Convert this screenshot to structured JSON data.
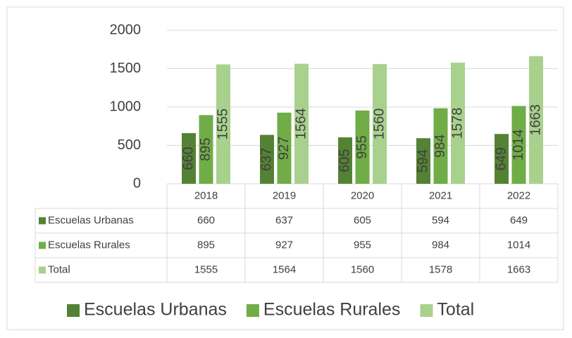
{
  "chart_data": {
    "type": "bar",
    "categories": [
      "2018",
      "2019",
      "2020",
      "2021",
      "2022"
    ],
    "series": [
      {
        "name": "Escuelas Urbanas",
        "color": "#548235",
        "values": [
          660,
          637,
          605,
          594,
          649
        ]
      },
      {
        "name": "Escuelas Rurales",
        "color": "#70ad47",
        "values": [
          895,
          927,
          955,
          984,
          1014
        ]
      },
      {
        "name": "Total",
        "color": "#a9d18e",
        "values": [
          1555,
          1564,
          1560,
          1578,
          1663
        ]
      }
    ],
    "ylim": [
      0,
      2000
    ],
    "yticks": [
      0,
      500,
      1000,
      1500,
      2000
    ],
    "grid": true,
    "data_table": true,
    "legend": "bottom"
  }
}
